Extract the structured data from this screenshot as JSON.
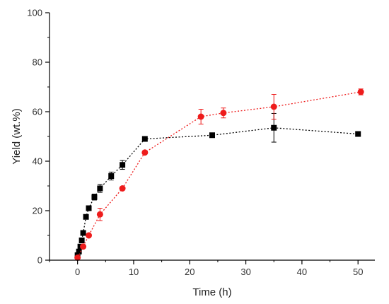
{
  "chart_data": {
    "type": "scatter",
    "xlabel": "Time (h)",
    "ylabel": "Yield (wt.%)",
    "xlim": [
      -5,
      53
    ],
    "ylim": [
      0,
      100
    ],
    "xticks": [
      0,
      10,
      20,
      30,
      40,
      50
    ],
    "yticks": [
      0,
      20,
      40,
      60,
      80,
      100
    ],
    "grid": false,
    "legend": "none",
    "series": [
      {
        "marker": "square",
        "color": "#000000",
        "line": "dotted",
        "points": [
          {
            "x": 0,
            "y": 2.0,
            "err": 0
          },
          {
            "x": 0.25,
            "y": 3.5,
            "err": 0
          },
          {
            "x": 0.5,
            "y": 5.5,
            "err": 0
          },
          {
            "x": 0.75,
            "y": 8.0,
            "err": 0
          },
          {
            "x": 1,
            "y": 11.0,
            "err": 0.6
          },
          {
            "x": 1.5,
            "y": 17.5,
            "err": 0.6
          },
          {
            "x": 2,
            "y": 21.0,
            "err": 0.6
          },
          {
            "x": 3,
            "y": 25.5,
            "err": 1.2
          },
          {
            "x": 4,
            "y": 29.0,
            "err": 1.6
          },
          {
            "x": 6,
            "y": 34.0,
            "err": 1.6
          },
          {
            "x": 8,
            "y": 38.5,
            "err": 1.8
          },
          {
            "x": 12,
            "y": 49.0,
            "err": 0.6
          },
          {
            "x": 24,
            "y": 50.5,
            "err": 0.8
          },
          {
            "x": 35,
            "y": 53.5,
            "err": 5.8
          },
          {
            "x": 50,
            "y": 51.0,
            "err": 0.6
          }
        ]
      },
      {
        "marker": "circle",
        "color": "#ee1c1c",
        "line": "dotted",
        "points": [
          {
            "x": 0,
            "y": 1.0,
            "err": 0
          },
          {
            "x": 1,
            "y": 5.5,
            "err": 0.6
          },
          {
            "x": 2,
            "y": 10.0,
            "err": 0.6
          },
          {
            "x": 4,
            "y": 18.5,
            "err": 2.5
          },
          {
            "x": 8,
            "y": 29.0,
            "err": 0.6
          },
          {
            "x": 12,
            "y": 43.5,
            "err": 0.6
          },
          {
            "x": 22,
            "y": 58.0,
            "err": 3.0
          },
          {
            "x": 26,
            "y": 59.5,
            "err": 2.0
          },
          {
            "x": 35,
            "y": 62.0,
            "err": 5.0
          },
          {
            "x": 50.5,
            "y": 68.0,
            "err": 1.2
          }
        ]
      }
    ]
  }
}
